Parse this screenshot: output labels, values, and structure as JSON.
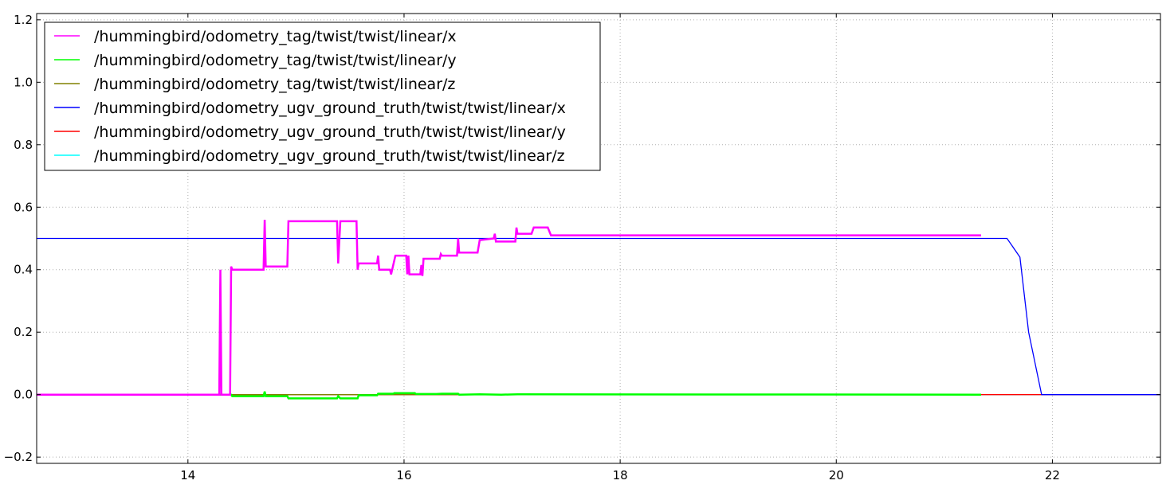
{
  "chart_data": {
    "type": "line",
    "title": "",
    "xlabel": "",
    "ylabel": "",
    "xlim": [
      12.6,
      23.0
    ],
    "ylim": [
      -0.22,
      1.22
    ],
    "xticks": [
      14,
      16,
      18,
      20,
      22
    ],
    "yticks": [
      -0.2,
      0.0,
      0.2,
      0.4,
      0.6,
      0.8,
      1.0,
      1.2
    ],
    "xtick_labels": [
      "14",
      "16",
      "18",
      "20",
      "22"
    ],
    "ytick_labels": [
      "−0.2",
      "0.0",
      "0.2",
      "0.4",
      "0.6",
      "0.8",
      "1.0",
      "1.2"
    ],
    "grid": true,
    "legend_position": "top-left",
    "series": [
      {
        "name": "/hummingbird/odometry_tag/twist/twist/linear/x",
        "color": "#ff00ff",
        "x": [
          12.6,
          14.29,
          14.3,
          14.31,
          14.39,
          14.4,
          14.41,
          14.7,
          14.71,
          14.72,
          14.73,
          14.92,
          14.93,
          15.38,
          15.39,
          15.41,
          15.42,
          15.56,
          15.57,
          15.58,
          15.75,
          15.76,
          15.77,
          15.87,
          15.88,
          15.92,
          15.93,
          16.02,
          16.03,
          16.04,
          16.05,
          16.15,
          16.16,
          16.17,
          16.18,
          16.33,
          16.34,
          16.35,
          16.49,
          16.5,
          16.51,
          16.68,
          16.7,
          16.71,
          16.83,
          16.84,
          16.85,
          17.03,
          17.04,
          17.05,
          17.06,
          17.18,
          17.2,
          17.33,
          17.36,
          18.0,
          19.0,
          20.0,
          21.0,
          21.34
        ],
        "y": [
          0.0,
          0.0,
          0.4,
          0.0,
          0.0,
          0.41,
          0.4,
          0.4,
          0.56,
          0.41,
          0.41,
          0.41,
          0.555,
          0.555,
          0.42,
          0.555,
          0.555,
          0.555,
          0.4,
          0.42,
          0.42,
          0.445,
          0.4,
          0.4,
          0.385,
          0.445,
          0.445,
          0.445,
          0.385,
          0.445,
          0.385,
          0.385,
          0.415,
          0.38,
          0.435,
          0.435,
          0.45,
          0.445,
          0.445,
          0.5,
          0.455,
          0.455,
          0.495,
          0.495,
          0.5,
          0.515,
          0.49,
          0.49,
          0.535,
          0.515,
          0.515,
          0.515,
          0.535,
          0.535,
          0.51,
          0.51,
          0.51,
          0.51,
          0.51,
          0.51
        ]
      },
      {
        "name": "/hummingbird/odometry_tag/twist/twist/linear/y",
        "color": "#00ff00",
        "x": [
          12.6,
          14.4,
          14.41,
          14.7,
          14.71,
          14.72,
          14.92,
          14.93,
          15.38,
          15.39,
          15.41,
          15.57,
          15.58,
          15.75,
          15.76,
          15.9,
          15.91,
          16.1,
          16.11,
          16.3,
          16.35,
          16.5,
          16.51,
          16.7,
          16.9,
          17.05,
          21.34
        ],
        "y": [
          0.0,
          0.0,
          -0.005,
          -0.005,
          0.01,
          -0.005,
          -0.005,
          -0.012,
          -0.012,
          -0.005,
          -0.012,
          -0.012,
          -0.002,
          -0.002,
          0.003,
          0.003,
          0.005,
          0.005,
          0.002,
          0.002,
          0.003,
          0.003,
          0.0,
          0.001,
          0.0,
          0.001,
          0.0
        ]
      },
      {
        "name": "/hummingbird/odometry_tag/twist/twist/linear/z",
        "color": "#808000",
        "x": [
          12.6,
          21.34
        ],
        "y": [
          0.0,
          0.0
        ]
      },
      {
        "name": "/hummingbird/odometry_ugv_ground_truth/twist/twist/linear/x",
        "color": "#0000ff",
        "x": [
          12.6,
          21.58,
          21.7,
          21.78,
          21.9,
          23.0
        ],
        "y": [
          0.5,
          0.5,
          0.44,
          0.2,
          0.0,
          0.0
        ]
      },
      {
        "name": "/hummingbird/odometry_ugv_ground_truth/twist/twist/linear/y",
        "color": "#ff0000",
        "x": [
          12.6,
          23.0
        ],
        "y": [
          0.0,
          0.0
        ]
      },
      {
        "name": "/hummingbird/odometry_ugv_ground_truth/twist/twist/linear/z",
        "color": "#00ffff",
        "x": [
          12.6,
          23.0
        ],
        "y": [
          0.0,
          0.0
        ]
      }
    ]
  }
}
